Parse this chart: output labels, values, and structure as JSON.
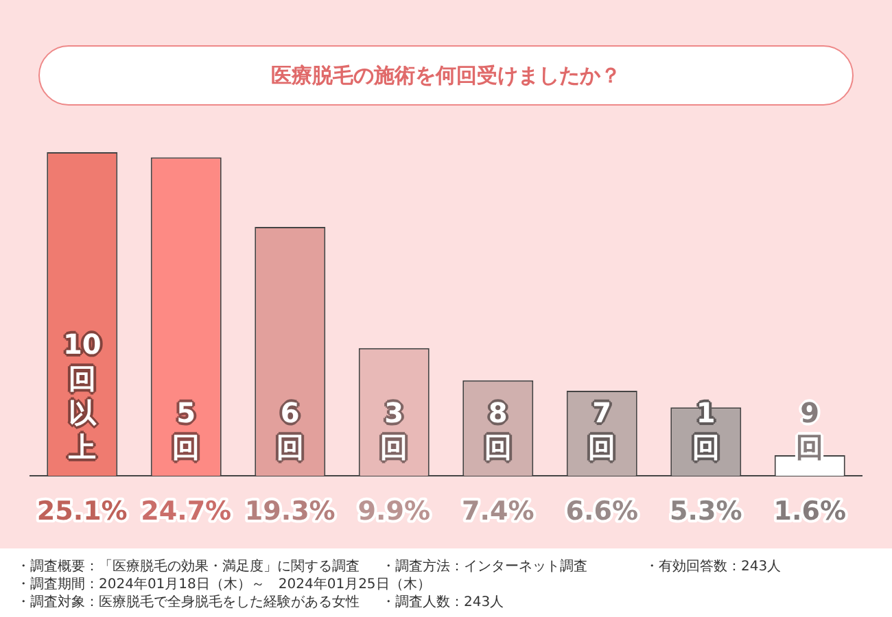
{
  "chart_data": {
    "type": "bar",
    "title": "医療脱毛の施術を何回受けましたか？",
    "categories": [
      "10回以上",
      "5回",
      "6回",
      "3回",
      "8回",
      "7回",
      "1回",
      "9回"
    ],
    "values": [
      25.1,
      24.7,
      19.3,
      9.9,
      7.4,
      6.6,
      5.3,
      1.6
    ],
    "value_labels": [
      "25.1%",
      "24.7%",
      "19.3%",
      "9.9%",
      "7.4%",
      "6.6%",
      "5.3%",
      "1.6%"
    ],
    "colors": [
      "#ef7b70",
      "#fd8a84",
      "#e2a09c",
      "#e8b9b7",
      "#d0b0ae",
      "#bfadab",
      "#b0a6a5",
      "#ffffff"
    ],
    "grid": false,
    "legend": false,
    "annotations": [
      "・調査概要：「医療脱毛の効果・満足度」に関する調査",
      "・調査期間：2024年01月18日（木）～　2024年01月25日（木）",
      "・調査対象：医療脱毛で全身脱毛をした経験がある女性",
      "・調査方法：インターネット調査",
      "・調査人数：243人",
      "・有効回答数：243人"
    ]
  }
}
